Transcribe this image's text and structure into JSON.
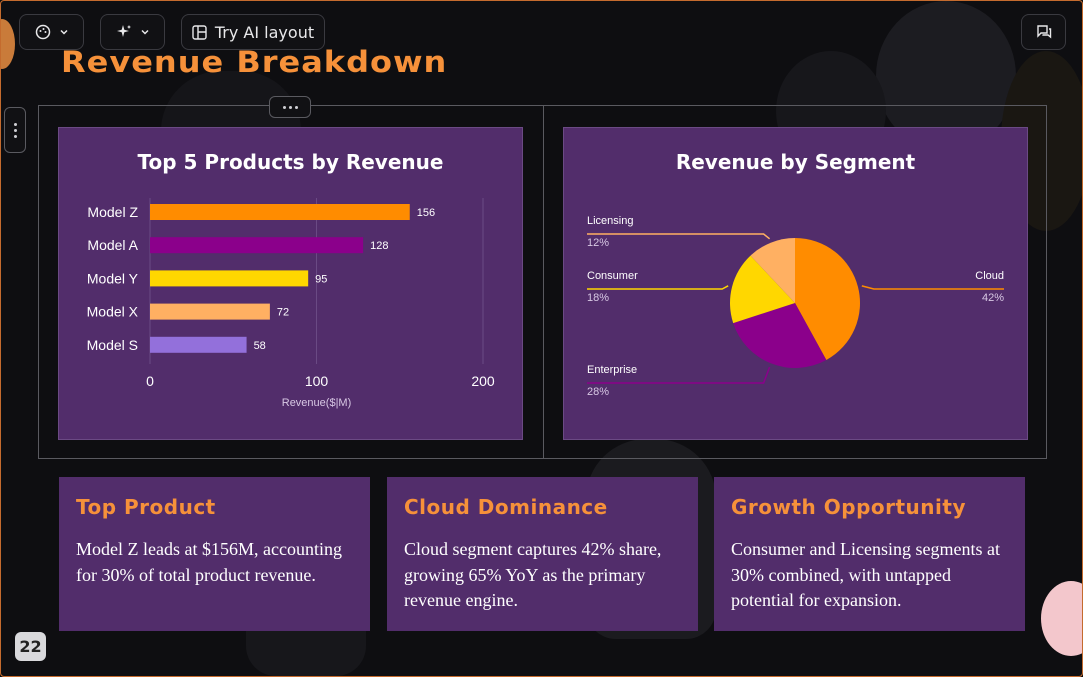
{
  "toolbar": {
    "theme_icon": "palette-icon",
    "ai_icon": "sparkles-icon",
    "ai_layout_label": "Try AI layout",
    "comment_icon": "comment-icon"
  },
  "slide": {
    "title": "Revenue Breakdown",
    "page_number": "22"
  },
  "chart_data": [
    {
      "type": "bar",
      "orientation": "horizontal",
      "title": "Top 5 Products by Revenue",
      "categories": [
        "Model Z",
        "Model A",
        "Model Y",
        "Model X",
        "Model S"
      ],
      "values": [
        156,
        128,
        95,
        72,
        58
      ],
      "colors": [
        "#ff8c00",
        "#8b008b",
        "#ffd700",
        "#ffb062",
        "#9370db"
      ],
      "xlabel": "Revenue($|M)",
      "ylabel": "",
      "xlim": [
        0,
        200
      ],
      "xticks": [
        0,
        100,
        200
      ],
      "grid": true,
      "data_labels": true
    },
    {
      "type": "pie",
      "title": "Revenue by Segment",
      "slices": [
        {
          "label": "Cloud",
          "value": 42,
          "display": "42%",
          "color": "#ff8c00"
        },
        {
          "label": "Enterprise",
          "value": 28,
          "display": "28%",
          "color": "#8b008b"
        },
        {
          "label": "Consumer",
          "value": 18,
          "display": "18%",
          "color": "#ffd700"
        },
        {
          "label": "Licensing",
          "value": 12,
          "display": "12%",
          "color": "#ffb062"
        }
      ]
    }
  ],
  "cards": [
    {
      "title": "Top Product",
      "text": "Model Z leads at $156M, accounting for 30% of total product revenue."
    },
    {
      "title": "Cloud Dominance",
      "text": "Cloud segment captures 42% share, growing 65% YoY as the primary revenue engine."
    },
    {
      "title": "Growth Opportunity",
      "text": "Consumer and Licensing segments at 30% combined, with untapped potential for expansion."
    }
  ],
  "colors": {
    "accent": "#f6913a",
    "card_bg": "#522d6b",
    "page_bg": "#0e0e11"
  }
}
